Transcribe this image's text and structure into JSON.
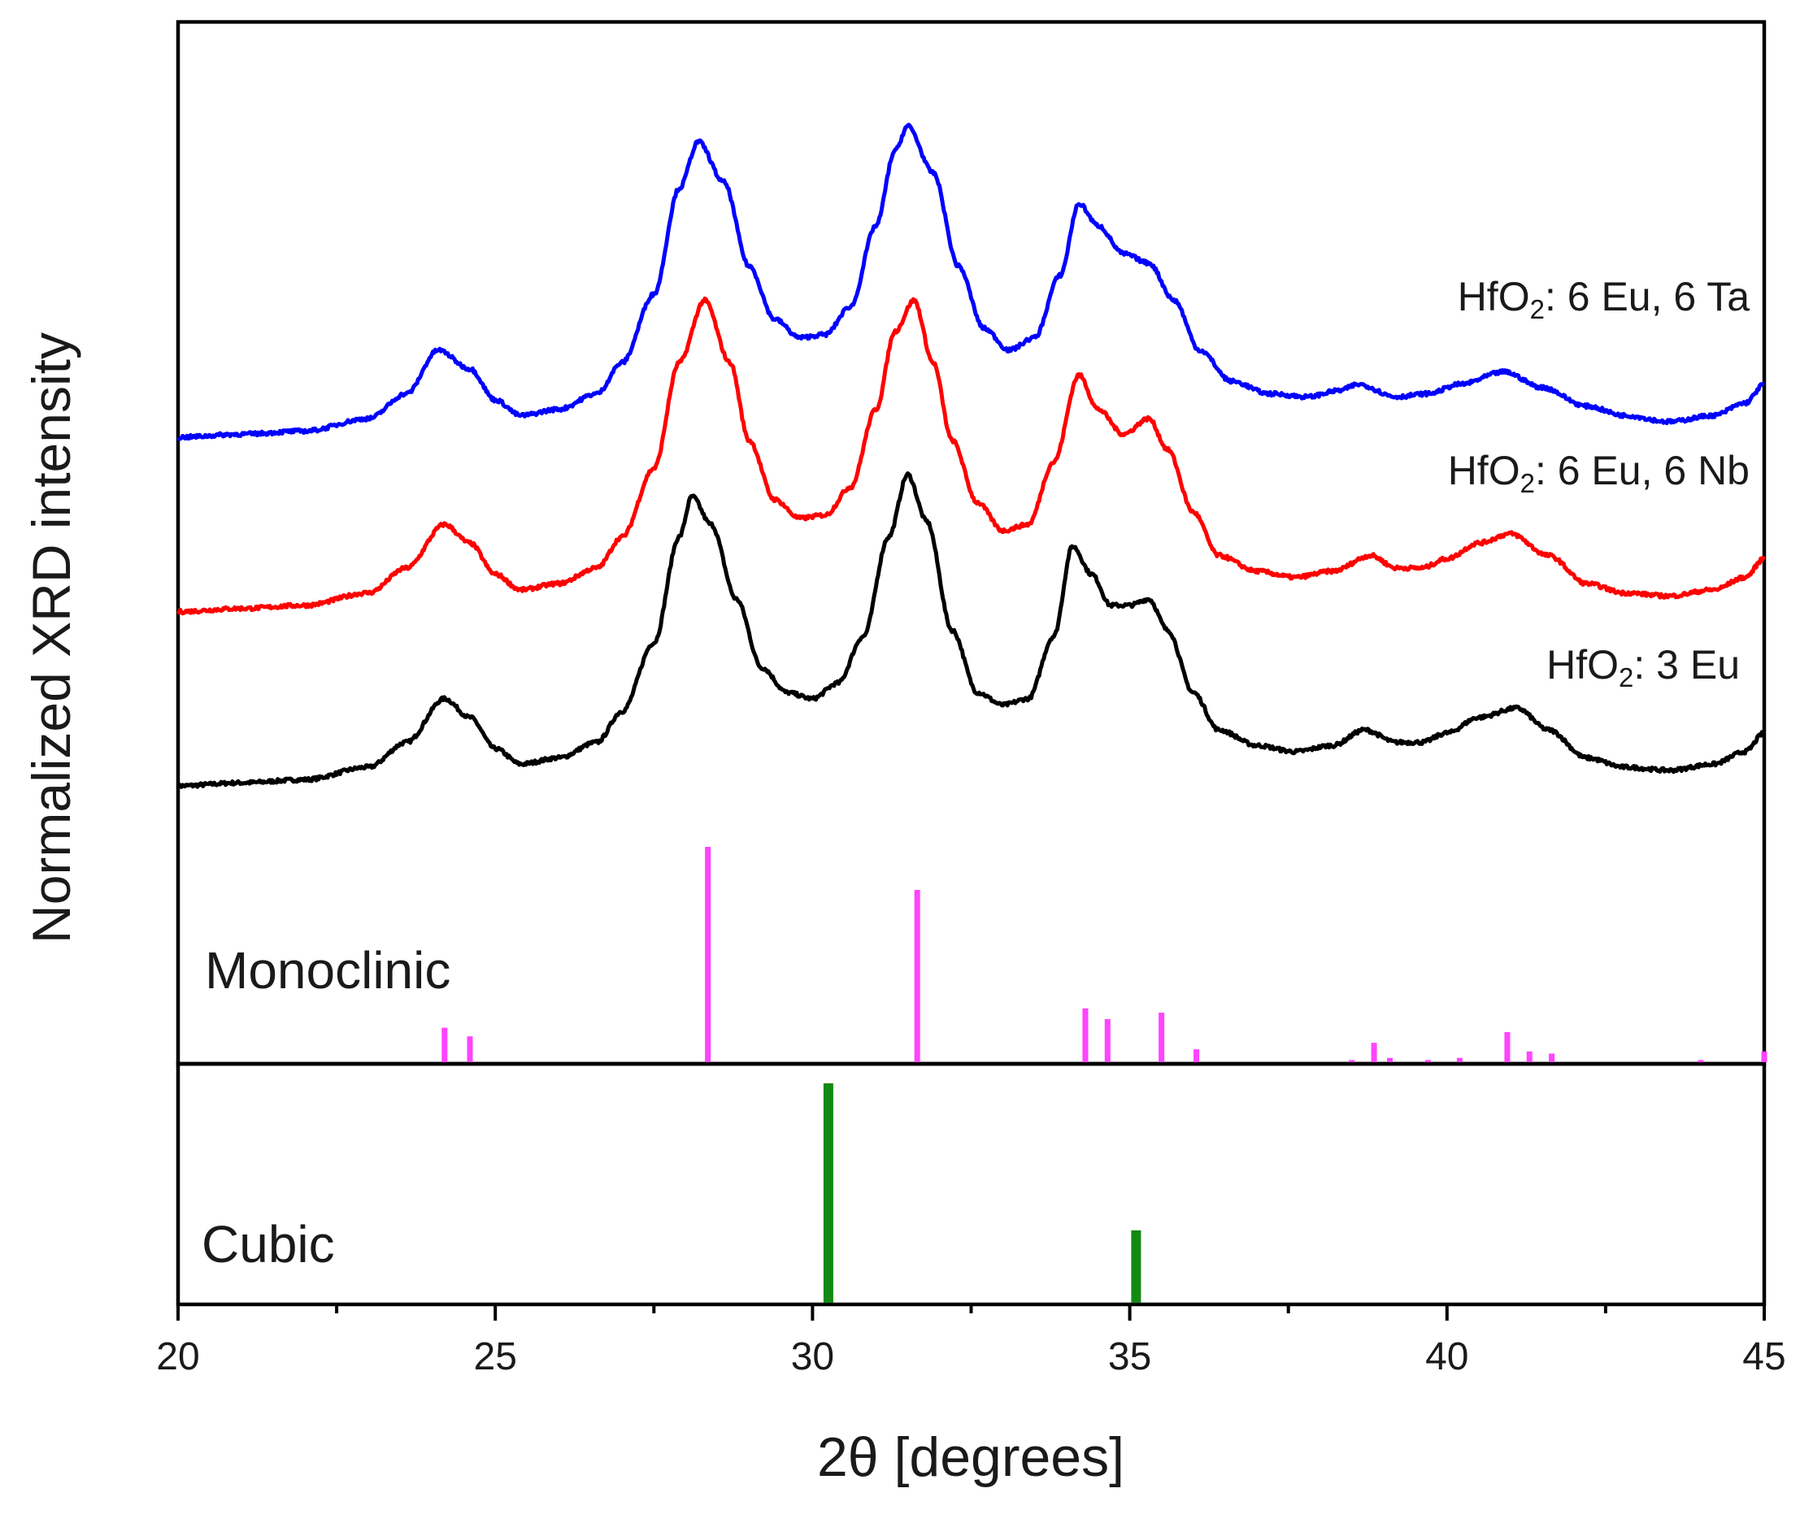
{
  "chart_data": {
    "type": "line",
    "title": "",
    "xlabel": "2θ [degrees]",
    "ylabel": "Normalized XRD intensity",
    "xlim": [
      20,
      45
    ],
    "xticks": [
      20,
      25,
      30,
      35,
      40,
      45
    ],
    "grid": false,
    "series": [
      {
        "name": "HfO2: 3 Eu",
        "label_base": "HfO",
        "label_sub": "2",
        "label_rest": ": 3 Eu",
        "color": "#000000",
        "offset": 0,
        "points": [
          [
            20,
            0.0
          ],
          [
            21,
            0.01
          ],
          [
            22,
            0.02
          ],
          [
            23,
            0.06
          ],
          [
            23.6,
            0.14
          ],
          [
            24.2,
            0.28
          ],
          [
            24.6,
            0.22
          ],
          [
            25.0,
            0.12
          ],
          [
            25.4,
            0.07
          ],
          [
            26.0,
            0.09
          ],
          [
            26.6,
            0.14
          ],
          [
            27.0,
            0.24
          ],
          [
            27.5,
            0.46
          ],
          [
            27.9,
            0.8
          ],
          [
            28.1,
            0.93
          ],
          [
            28.4,
            0.84
          ],
          [
            28.8,
            0.6
          ],
          [
            29.2,
            0.38
          ],
          [
            29.6,
            0.3
          ],
          [
            30.0,
            0.28
          ],
          [
            30.4,
            0.33
          ],
          [
            30.8,
            0.48
          ],
          [
            31.2,
            0.8
          ],
          [
            31.5,
            1.0
          ],
          [
            31.8,
            0.85
          ],
          [
            32.2,
            0.5
          ],
          [
            32.6,
            0.3
          ],
          [
            33.0,
            0.26
          ],
          [
            33.4,
            0.28
          ],
          [
            33.8,
            0.48
          ],
          [
            34.1,
            0.77
          ],
          [
            34.4,
            0.68
          ],
          [
            34.7,
            0.58
          ],
          [
            35.0,
            0.58
          ],
          [
            35.3,
            0.6
          ],
          [
            35.6,
            0.5
          ],
          [
            36.0,
            0.3
          ],
          [
            36.4,
            0.18
          ],
          [
            37.0,
            0.13
          ],
          [
            37.6,
            0.11
          ],
          [
            38.2,
            0.13
          ],
          [
            38.7,
            0.18
          ],
          [
            39.2,
            0.14
          ],
          [
            39.6,
            0.14
          ],
          [
            40.0,
            0.17
          ],
          [
            40.5,
            0.22
          ],
          [
            41.1,
            0.25
          ],
          [
            41.6,
            0.18
          ],
          [
            42.2,
            0.09
          ],
          [
            42.8,
            0.06
          ],
          [
            43.5,
            0.05
          ],
          [
            44.2,
            0.07
          ],
          [
            44.7,
            0.11
          ],
          [
            45,
            0.17
          ]
        ]
      },
      {
        "name": "HfO2: 6 Eu, 6 Nb",
        "label_base": "HfO",
        "label_sub": "2",
        "label_rest": ": 6 Eu, 6 Nb",
        "color": "#ff0000",
        "offset": 0.56,
        "points": [
          [
            20,
            0.0
          ],
          [
            21,
            0.01
          ],
          [
            22,
            0.02
          ],
          [
            23,
            0.06
          ],
          [
            23.6,
            0.14
          ],
          [
            24.2,
            0.28
          ],
          [
            24.6,
            0.22
          ],
          [
            25.0,
            0.12
          ],
          [
            25.4,
            0.07
          ],
          [
            26.0,
            0.09
          ],
          [
            26.6,
            0.14
          ],
          [
            27.0,
            0.24
          ],
          [
            27.5,
            0.46
          ],
          [
            27.9,
            0.8
          ],
          [
            28.3,
            1.0
          ],
          [
            28.7,
            0.8
          ],
          [
            29.0,
            0.55
          ],
          [
            29.4,
            0.36
          ],
          [
            29.8,
            0.3
          ],
          [
            30.2,
            0.31
          ],
          [
            30.6,
            0.4
          ],
          [
            31.0,
            0.65
          ],
          [
            31.3,
            0.9
          ],
          [
            31.6,
            1.0
          ],
          [
            31.9,
            0.8
          ],
          [
            32.2,
            0.55
          ],
          [
            32.6,
            0.35
          ],
          [
            33.0,
            0.26
          ],
          [
            33.4,
            0.28
          ],
          [
            33.8,
            0.48
          ],
          [
            34.2,
            0.76
          ],
          [
            34.5,
            0.65
          ],
          [
            34.9,
            0.57
          ],
          [
            35.3,
            0.62
          ],
          [
            35.6,
            0.52
          ],
          [
            36.0,
            0.32
          ],
          [
            36.4,
            0.18
          ],
          [
            37.0,
            0.13
          ],
          [
            37.6,
            0.11
          ],
          [
            38.2,
            0.13
          ],
          [
            38.8,
            0.18
          ],
          [
            39.2,
            0.14
          ],
          [
            39.6,
            0.14
          ],
          [
            40.0,
            0.17
          ],
          [
            40.5,
            0.22
          ],
          [
            41.0,
            0.25
          ],
          [
            41.6,
            0.18
          ],
          [
            42.2,
            0.09
          ],
          [
            42.8,
            0.06
          ],
          [
            43.5,
            0.05
          ],
          [
            44.2,
            0.07
          ],
          [
            44.7,
            0.11
          ],
          [
            45,
            0.17
          ]
        ]
      },
      {
        "name": "HfO2: 6 Eu, 6 Ta",
        "label_base": "HfO",
        "label_sub": "2",
        "label_rest": ": 6 Eu, 6 Ta",
        "color": "#0000ff",
        "offset": 1.12,
        "points": [
          [
            20,
            0.0
          ],
          [
            21,
            0.01
          ],
          [
            22,
            0.02
          ],
          [
            23,
            0.06
          ],
          [
            23.6,
            0.14
          ],
          [
            24.1,
            0.28
          ],
          [
            24.6,
            0.22
          ],
          [
            25.0,
            0.12
          ],
          [
            25.4,
            0.07
          ],
          [
            26.0,
            0.09
          ],
          [
            26.6,
            0.14
          ],
          [
            27.0,
            0.24
          ],
          [
            27.5,
            0.46
          ],
          [
            27.9,
            0.8
          ],
          [
            28.2,
            0.95
          ],
          [
            28.6,
            0.82
          ],
          [
            29.0,
            0.55
          ],
          [
            29.4,
            0.38
          ],
          [
            29.8,
            0.32
          ],
          [
            30.2,
            0.33
          ],
          [
            30.6,
            0.42
          ],
          [
            31.0,
            0.68
          ],
          [
            31.3,
            0.92
          ],
          [
            31.5,
            1.0
          ],
          [
            31.9,
            0.85
          ],
          [
            32.3,
            0.55
          ],
          [
            32.7,
            0.35
          ],
          [
            33.1,
            0.28
          ],
          [
            33.5,
            0.32
          ],
          [
            33.9,
            0.52
          ],
          [
            34.2,
            0.75
          ],
          [
            34.5,
            0.68
          ],
          [
            34.9,
            0.59
          ],
          [
            35.3,
            0.56
          ],
          [
            35.7,
            0.44
          ],
          [
            36.1,
            0.28
          ],
          [
            36.6,
            0.18
          ],
          [
            37.2,
            0.14
          ],
          [
            37.8,
            0.13
          ],
          [
            38.3,
            0.15
          ],
          [
            38.6,
            0.17
          ],
          [
            39.2,
            0.13
          ],
          [
            39.7,
            0.14
          ],
          [
            40.2,
            0.17
          ],
          [
            40.9,
            0.21
          ],
          [
            41.5,
            0.16
          ],
          [
            42.2,
            0.1
          ],
          [
            42.8,
            0.07
          ],
          [
            43.5,
            0.05
          ],
          [
            44.2,
            0.07
          ],
          [
            44.7,
            0.11
          ],
          [
            45,
            0.17
          ]
        ]
      }
    ],
    "reference_patterns": [
      {
        "name": "Monoclinic",
        "color": "#ff44ff",
        "peaks": [
          [
            24.2,
            0.16
          ],
          [
            24.6,
            0.12
          ],
          [
            28.35,
            1.0
          ],
          [
            31.65,
            0.8
          ],
          [
            34.3,
            0.25
          ],
          [
            34.65,
            0.2
          ],
          [
            35.5,
            0.23
          ],
          [
            36.05,
            0.06
          ],
          [
            38.5,
            0.01
          ],
          [
            38.85,
            0.09
          ],
          [
            39.1,
            0.02
          ],
          [
            39.7,
            0.01
          ],
          [
            40.2,
            0.02
          ],
          [
            40.95,
            0.14
          ],
          [
            41.3,
            0.05
          ],
          [
            41.65,
            0.04
          ],
          [
            44.0,
            0.01
          ],
          [
            45.0,
            0.05
          ]
        ]
      },
      {
        "name": "Cubic",
        "color": "#138a13",
        "peaks": [
          [
            30.25,
            1.0
          ],
          [
            35.1,
            0.33
          ]
        ]
      }
    ]
  }
}
